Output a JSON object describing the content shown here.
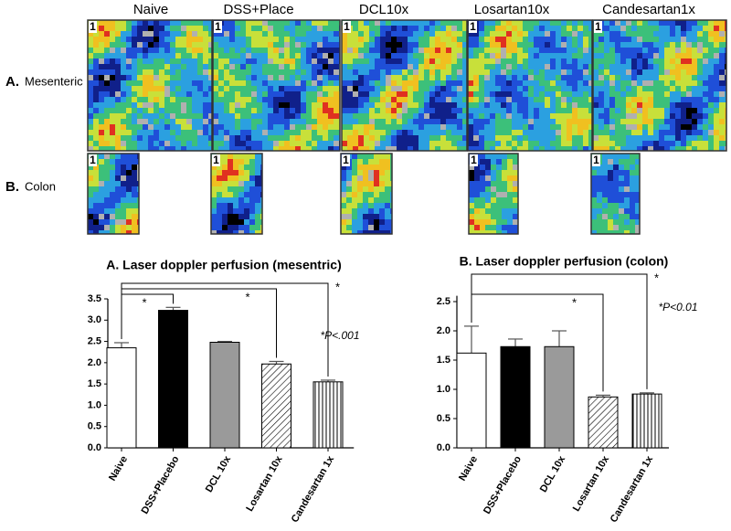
{
  "panels": {
    "columns": [
      "Naive",
      "DSS+Place",
      "DCL10x",
      "Losartan10x",
      "Candesartan1x"
    ],
    "rows": [
      {
        "letter": "A.",
        "name": "Mesenteric"
      },
      {
        "letter": "B.",
        "name": "Colon"
      }
    ],
    "tag": "1"
  },
  "chart_data": [
    {
      "type": "bar",
      "title": "A. Laser doppler  perfusion (mesentric)",
      "categories": [
        "Naive",
        "DSS+Placebo",
        "DCL 10x",
        "Losartan 10x",
        "Candesartan 1x"
      ],
      "values": [
        2.35,
        3.23,
        2.48,
        1.97,
        1.55
      ],
      "errors": [
        0.12,
        0.07,
        0.02,
        0.06,
        0.04
      ],
      "fills": [
        "#ffffff",
        "#000000",
        "#9a9a9a",
        "hatch-diagonal",
        "hatch-vertical"
      ],
      "ylim": [
        0,
        3.5
      ],
      "yticks": [
        {
          "value": 0,
          "label": "0.0"
        },
        0.5,
        {
          "value": 1,
          "label": "1.0"
        },
        1.5,
        {
          "value": 2,
          "label": "2.0"
        },
        2.5,
        {
          "value": 3,
          "label": "3.0"
        },
        3.5
      ],
      "brackets": [
        {
          "to": 1,
          "label": "*"
        },
        {
          "to": 3,
          "label": "*"
        },
        {
          "to": 4,
          "label": "*"
        }
      ],
      "annotation": "*P<.001"
    },
    {
      "type": "bar",
      "title": "B. Laser doppler perfusion (colon)",
      "categories": [
        "Naive",
        "DSS+Placebo",
        "DCL 10x",
        "Losartan 10x",
        "Candesartan 1x"
      ],
      "values": [
        1.62,
        1.73,
        1.73,
        0.87,
        0.92
      ],
      "errors": [
        0.46,
        0.13,
        0.27,
        0.03,
        0.02
      ],
      "fills": [
        "#ffffff",
        "#000000",
        "#9a9a9a",
        "hatch-diagonal",
        "hatch-vertical"
      ],
      "ylim": [
        0,
        2.6
      ],
      "yticks": [
        {
          "value": 0,
          "label": "0.0"
        },
        0.5,
        {
          "value": 1,
          "label": "1.0"
        },
        1.5,
        {
          "value": 2,
          "label": "2.0"
        },
        2.5
      ],
      "brackets": [
        {
          "to": 3,
          "label": "*"
        },
        {
          "to": 4,
          "label": "*"
        }
      ],
      "annotation": "*P<0.01"
    }
  ]
}
